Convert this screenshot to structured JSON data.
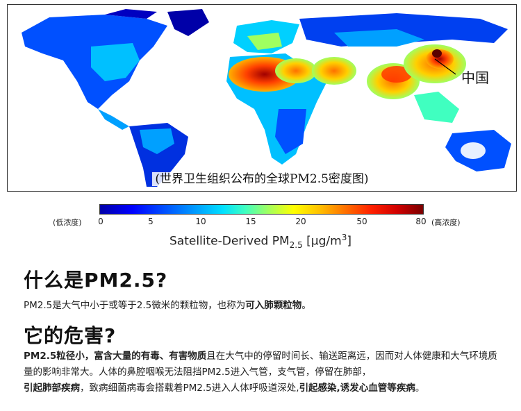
{
  "map": {
    "caption": "(世界卫生组织公布的全球PM2.5密度图)",
    "china_label": "中国"
  },
  "colorbar": {
    "low_label": "(低浓度)",
    "high_label": "(高浓度)",
    "ticks": [
      "0",
      "5",
      "10",
      "15",
      "20",
      "50",
      "80"
    ],
    "title_main": "Satellite-Derived PM",
    "title_sub": "2.5",
    "title_unit_pre": "[μg/m",
    "title_unit_sup": "3",
    "title_unit_post": "]",
    "colors": [
      "#0000a8",
      "#0000ff",
      "#00a0ff",
      "#40ffc0",
      "#ffff00",
      "#ff7000",
      "#d00000",
      "#7a0000"
    ]
  },
  "section1": {
    "heading": "什么是PM2.5?",
    "text_plain": "PM2.5是大气中小于或等于2.5微米的颗粒物，也称为",
    "text_bold": "可入肺颗粒物",
    "text_end": "。"
  },
  "section2": {
    "heading": "它的危害?",
    "s1_bold": "PM2.5粒径小，富含大量的有毒、有害物质",
    "s1_plain": "且在大气中的停留时间长、输送距离远，因而对人体健康和大气环境质量的影响非常大。人体的鼻腔咽喉无法阻挡PM2.5进入气管，支气管，停留在肺部，",
    "s2_bold": "引起肺部疾病",
    "s2_plain": "，致病细菌病毒会搭载着PM2.5进入人体呼吸道深处,",
    "s3_bold": "引起感染,诱发心血管等疾病",
    "s3_end": "。"
  }
}
